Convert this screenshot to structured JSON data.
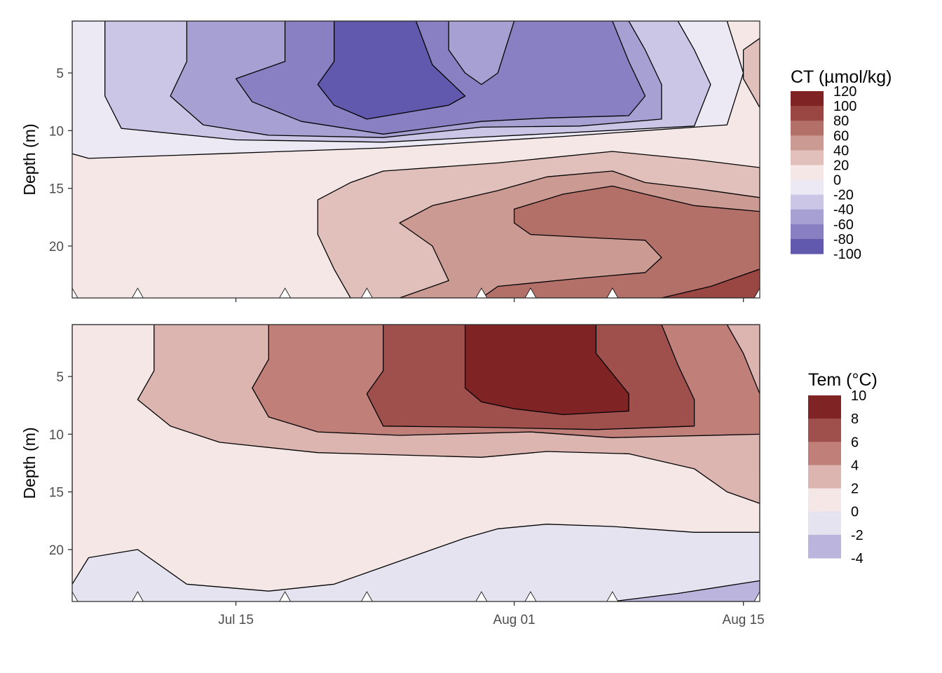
{
  "chart_data": [
    {
      "type": "filled-contour",
      "ylabel": "Depth (m)",
      "y_reversed": true,
      "xlim": [
        "2023-07-05",
        "2023-08-16"
      ],
      "ylim": [
        0.5,
        24.5
      ],
      "y_ticks": [
        "5",
        "10",
        "15",
        "20"
      ],
      "y_tick_values": [
        5,
        10,
        15,
        20
      ],
      "x_tick_dates": [
        "2023-07-15",
        "2023-08-01",
        "2023-08-15"
      ],
      "sample_dates": [
        "2023-07-05",
        "2023-07-09",
        "2023-07-18",
        "2023-07-23",
        "2023-07-30",
        "2023-08-02",
        "2023-08-07",
        "2023-08-16"
      ],
      "sample_depth": 24.5,
      "legend": {
        "title": "CT (µmol/kg)",
        "labels": [
          "120",
          "100",
          "80",
          "60",
          "40",
          "20",
          "0",
          "-20",
          "-40",
          "-60",
          "-80",
          "-100"
        ],
        "colors": [
          "#7f2324",
          "#9a4643",
          "#b27068",
          "#cb9a93",
          "#e1c0bb",
          "#f4e7e6",
          "#ece9f5",
          "#cbc6e5",
          "#a7a1d3",
          "#8880c3",
          "#6159ad"
        ]
      },
      "regions": [
        {
          "color": "#f4e7e6",
          "points": [
            [
              "2023-07-05",
              0.5
            ],
            [
              "2023-08-16",
              0.5
            ],
            [
              "2023-08-16",
              24.5
            ],
            [
              "2023-07-05",
              24.5
            ]
          ]
        },
        {
          "color": "#ece9f5",
          "points": [
            [
              "2023-07-05",
              0.5
            ],
            [
              "2023-08-14",
              0.5
            ],
            [
              "2023-08-15",
              5
            ],
            [
              "2023-08-14",
              9.5
            ],
            [
              "2023-08-04",
              10.5
            ],
            [
              "2023-07-24",
              11.5
            ],
            [
              "2023-07-14",
              12
            ],
            [
              "2023-07-06",
              12.4
            ],
            [
              "2023-07-05",
              12
            ]
          ]
        },
        {
          "color": "#cbc6e5",
          "points": [
            [
              "2023-07-07",
              0.5
            ],
            [
              "2023-08-11",
              0.5
            ],
            [
              "2023-08-12",
              3
            ],
            [
              "2023-08-13",
              6
            ],
            [
              "2023-08-12",
              9.6
            ],
            [
              "2023-08-04",
              10.2
            ],
            [
              "2023-07-24",
              11
            ],
            [
              "2023-07-15",
              10.8
            ],
            [
              "2023-07-08",
              9.8
            ],
            [
              "2023-07-07",
              7
            ],
            [
              "2023-07-07",
              4
            ]
          ]
        },
        {
          "color": "#a7a1d3",
          "points": [
            [
              "2023-07-12",
              0.5
            ],
            [
              "2023-08-08",
              0.5
            ],
            [
              "2023-08-09",
              3
            ],
            [
              "2023-08-10",
              6
            ],
            [
              "2023-08-10",
              9
            ],
            [
              "2023-08-05",
              9.6
            ],
            [
              "2023-07-30",
              9.7
            ],
            [
              "2023-07-24",
              10.6
            ],
            [
              "2023-07-17",
              10.4
            ],
            [
              "2023-07-13",
              9.5
            ],
            [
              "2023-07-11",
              7
            ],
            [
              "2023-07-12",
              4
            ]
          ]
        },
        {
          "color": "#8880c3",
          "points": [
            [
              "2023-07-18",
              0.5
            ],
            [
              "2023-08-07",
              0.5
            ],
            [
              "2023-08-08",
              4
            ],
            [
              "2023-08-09",
              7
            ],
            [
              "2023-08-08",
              8.7
            ],
            [
              "2023-08-03",
              8.9
            ],
            [
              "2023-07-30",
              9.2
            ],
            [
              "2023-07-24",
              10.3
            ],
            [
              "2023-07-19",
              9.2
            ],
            [
              "2023-07-16",
              7.5
            ],
            [
              "2023-07-15",
              5.5
            ],
            [
              "2023-07-18",
              4
            ]
          ]
        },
        {
          "color": "#a7a1d3",
          "points": [
            [
              "2023-07-28",
              0.5
            ],
            [
              "2023-08-01",
              0.5
            ],
            [
              "2023-07-31",
              5
            ],
            [
              "2023-07-30",
              6
            ],
            [
              "2023-07-29",
              5
            ],
            [
              "2023-07-28",
              3
            ]
          ]
        },
        {
          "color": "#6159ad",
          "points": [
            [
              "2023-07-21",
              0.5
            ],
            [
              "2023-07-26",
              0.5
            ],
            [
              "2023-07-27",
              4.3
            ],
            [
              "2023-07-29",
              7
            ],
            [
              "2023-07-28",
              7.8
            ],
            [
              "2023-07-23",
              9
            ],
            [
              "2023-07-21",
              7.8
            ],
            [
              "2023-07-20",
              6
            ],
            [
              "2023-07-21",
              4
            ]
          ]
        },
        {
          "color": "#e1c0bb",
          "points": [
            [
              "2023-07-22",
              24.5
            ],
            [
              "2023-07-21",
              22
            ],
            [
              "2023-07-20",
              19
            ],
            [
              "2023-07-20",
              16
            ],
            [
              "2023-07-22",
              14.5
            ],
            [
              "2023-07-24",
              13.5
            ],
            [
              "2023-07-31",
              12.8
            ],
            [
              "2023-08-07",
              11.8
            ],
            [
              "2023-08-12",
              12.5
            ],
            [
              "2023-08-16",
              13.2
            ],
            [
              "2023-08-16",
              24.5
            ]
          ]
        },
        {
          "color": "#cb9a93",
          "points": [
            [
              "2023-07-25",
              24.5
            ],
            [
              "2023-07-28",
              23
            ],
            [
              "2023-07-27",
              20
            ],
            [
              "2023-07-25",
              18
            ],
            [
              "2023-07-27",
              16.5
            ],
            [
              "2023-07-31",
              15.2
            ],
            [
              "2023-08-03",
              14
            ],
            [
              "2023-08-07",
              13.5
            ],
            [
              "2023-08-09",
              14.5
            ],
            [
              "2023-08-12",
              15
            ],
            [
              "2023-08-16",
              15.8
            ],
            [
              "2023-08-16",
              24.5
            ]
          ]
        },
        {
          "color": "#b27068",
          "points": [
            [
              "2023-07-30",
              24.5
            ],
            [
              "2023-07-31",
              23.5
            ],
            [
              "2023-08-05",
              22.8
            ],
            [
              "2023-08-09",
              22.3
            ],
            [
              "2023-08-10",
              21
            ],
            [
              "2023-08-09",
              19.5
            ],
            [
              "2023-08-06",
              19.3
            ],
            [
              "2023-08-02",
              19
            ],
            [
              "2023-08-01",
              18
            ],
            [
              "2023-08-01",
              16.8
            ],
            [
              "2023-08-04",
              15.5
            ],
            [
              "2023-08-07",
              14.8
            ],
            [
              "2023-08-09",
              15.5
            ],
            [
              "2023-08-12",
              16.5
            ],
            [
              "2023-08-16",
              17
            ],
            [
              "2023-08-16",
              24.5
            ]
          ]
        },
        {
          "color": "#9a4643",
          "points": [
            [
              "2023-08-10",
              24.5
            ],
            [
              "2023-08-13",
              23.5
            ],
            [
              "2023-08-16",
              22
            ],
            [
              "2023-08-16",
              24.5
            ]
          ]
        },
        {
          "color": "#e1c0bb",
          "points": [
            [
              "2023-08-16",
              2
            ],
            [
              "2023-08-16",
              8
            ],
            [
              "2023-08-15",
              5.5
            ],
            [
              "2023-08-15",
              3
            ]
          ]
        }
      ]
    },
    {
      "type": "filled-contour",
      "ylabel": "Depth (m)",
      "y_reversed": true,
      "xlim": [
        "2023-07-05",
        "2023-08-16"
      ],
      "ylim": [
        0.5,
        24.5
      ],
      "x_ticks": [
        "Jul 15",
        "Aug 01",
        "Aug 15"
      ],
      "x_tick_dates": [
        "2023-07-15",
        "2023-08-01",
        "2023-08-15"
      ],
      "y_ticks": [
        "5",
        "10",
        "15",
        "20"
      ],
      "y_tick_values": [
        5,
        10,
        15,
        20
      ],
      "sample_dates": [
        "2023-07-05",
        "2023-07-09",
        "2023-07-18",
        "2023-07-23",
        "2023-07-30",
        "2023-08-02",
        "2023-08-07",
        "2023-08-16"
      ],
      "sample_depth": 24.5,
      "legend": {
        "title": "Tem (°C)",
        "labels": [
          "10",
          "8",
          "6",
          "4",
          "2",
          "0",
          "-2",
          "-4"
        ],
        "colors": [
          "#7f2324",
          "#a0504c",
          "#c07f79",
          "#dcb4b0",
          "#f4e7e6",
          "#e6e3f1",
          "#bbb5dd"
        ]
      },
      "regions": [
        {
          "color": "#e6e3f1",
          "points": [
            [
              "2023-07-05",
              0.5
            ],
            [
              "2023-08-16",
              0.5
            ],
            [
              "2023-08-16",
              24.5
            ],
            [
              "2023-07-05",
              24.5
            ]
          ]
        },
        {
          "color": "#f4e7e6",
          "points": [
            [
              "2023-07-05",
              0.5
            ],
            [
              "2023-08-16",
              0.5
            ],
            [
              "2023-08-16",
              18.5
            ],
            [
              "2023-08-12",
              18.5
            ],
            [
              "2023-08-07",
              18
            ],
            [
              "2023-08-03",
              17.8
            ],
            [
              "2023-07-31",
              18.2
            ],
            [
              "2023-07-29",
              19
            ],
            [
              "2023-07-27",
              20
            ],
            [
              "2023-07-24",
              21.5
            ],
            [
              "2023-07-21",
              23
            ],
            [
              "2023-07-17",
              23.6
            ],
            [
              "2023-07-12",
              23
            ],
            [
              "2023-07-09",
              20
            ],
            [
              "2023-07-06",
              20.7
            ],
            [
              "2023-07-05",
              23
            ]
          ]
        },
        {
          "color": "#dcb4b0",
          "points": [
            [
              "2023-07-10",
              0.5
            ],
            [
              "2023-08-16",
              0.5
            ],
            [
              "2023-08-16",
              16
            ],
            [
              "2023-08-14",
              15
            ],
            [
              "2023-08-12",
              13
            ],
            [
              "2023-08-08",
              11.7
            ],
            [
              "2023-08-03",
              11.5
            ],
            [
              "2023-07-30",
              12
            ],
            [
              "2023-07-20",
              11.6
            ],
            [
              "2023-07-14",
              10.7
            ],
            [
              "2023-07-11",
              9.3
            ],
            [
              "2023-07-09",
              7
            ],
            [
              "2023-07-10",
              4.5
            ]
          ]
        },
        {
          "color": "#c07f79",
          "points": [
            [
              "2023-07-17",
              0.5
            ],
            [
              "2023-08-14",
              0.5
            ],
            [
              "2023-08-15",
              3
            ],
            [
              "2023-08-16",
              6.5
            ],
            [
              "2023-08-16",
              10
            ],
            [
              "2023-08-10",
              10.2
            ],
            [
              "2023-08-07",
              10.3
            ],
            [
              "2023-08-02",
              9.8
            ],
            [
              "2023-07-25",
              10.1
            ],
            [
              "2023-07-20",
              9.8
            ],
            [
              "2023-07-17",
              8.5
            ],
            [
              "2023-07-16",
              6
            ],
            [
              "2023-07-17",
              3.5
            ]
          ]
        },
        {
          "color": "#a0504c",
          "points": [
            [
              "2023-07-24",
              0.5
            ],
            [
              "2023-08-10",
              0.5
            ],
            [
              "2023-08-11",
              4
            ],
            [
              "2023-08-12",
              7
            ],
            [
              "2023-08-12",
              9.3
            ],
            [
              "2023-08-06",
              9.6
            ],
            [
              "2023-07-30",
              9.4
            ],
            [
              "2023-07-24",
              9.3
            ],
            [
              "2023-07-23",
              6.5
            ],
            [
              "2023-07-24",
              4.5
            ]
          ]
        },
        {
          "color": "#7f2324",
          "points": [
            [
              "2023-07-29",
              0.5
            ],
            [
              "2023-08-06",
              0.5
            ],
            [
              "2023-08-06",
              3
            ],
            [
              "2023-08-08",
              6.5
            ],
            [
              "2023-08-08",
              8
            ],
            [
              "2023-08-04",
              8.3
            ],
            [
              "2023-08-01",
              7.8
            ],
            [
              "2023-07-30",
              7.2
            ],
            [
              "2023-07-29",
              6
            ],
            [
              "2023-07-29",
              3
            ]
          ]
        },
        {
          "color": "#bbb5dd",
          "points": [
            [
              "2023-08-07",
              24.5
            ],
            [
              "2023-08-11",
              23.8
            ],
            [
              "2023-08-16",
              22.7
            ],
            [
              "2023-08-16",
              24.5
            ]
          ]
        }
      ]
    }
  ]
}
